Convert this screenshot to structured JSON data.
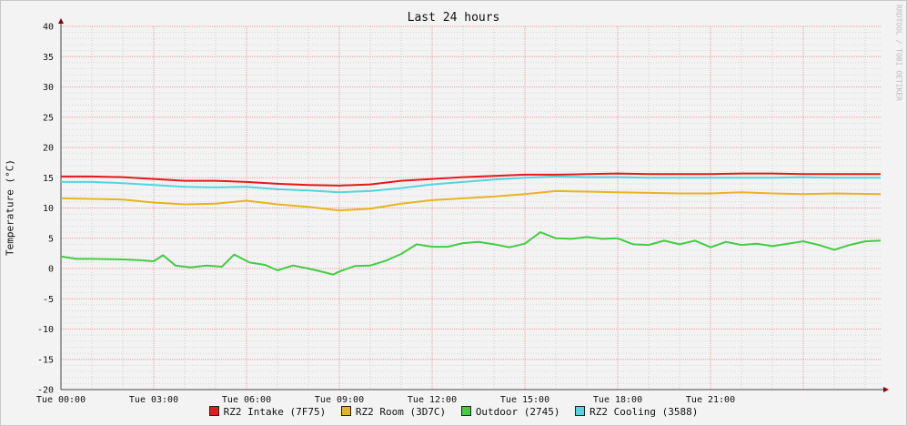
{
  "chart_data": {
    "type": "line",
    "title": "Last 24 hours",
    "ylabel": "Temperature (°C)",
    "watermark": "RRDTOOL / TOBI OETIKER",
    "ylim": [
      -20,
      40
    ],
    "yticks": [
      40,
      35,
      30,
      25,
      20,
      15,
      10,
      5,
      0,
      -5,
      -10,
      -15,
      -20
    ],
    "xlim": [
      0,
      26.5
    ],
    "xticks": [
      {
        "x": 0,
        "label": "Tue 00:00"
      },
      {
        "x": 3,
        "label": "Tue 03:00"
      },
      {
        "x": 6,
        "label": "Tue 06:00"
      },
      {
        "x": 9,
        "label": "Tue 09:00"
      },
      {
        "x": 12,
        "label": "Tue 12:00"
      },
      {
        "x": 15,
        "label": "Tue 15:00"
      },
      {
        "x": 18,
        "label": "Tue 18:00"
      },
      {
        "x": 21,
        "label": "Tue 21:00"
      }
    ],
    "grid": true,
    "legend_position": "bottom",
    "series": [
      {
        "name": "RZ2 Intake (7F75)",
        "color": "#e41a1c",
        "x": [
          0,
          1,
          2,
          3,
          4,
          5,
          6,
          7,
          8,
          9,
          10,
          11,
          12,
          13,
          14,
          15,
          16,
          17,
          18,
          19,
          20,
          21,
          22,
          23,
          24,
          25,
          26.5
        ],
        "y": [
          15.2,
          15.2,
          15.1,
          14.8,
          14.5,
          14.5,
          14.3,
          14.0,
          13.8,
          13.7,
          13.9,
          14.5,
          14.8,
          15.1,
          15.3,
          15.5,
          15.5,
          15.6,
          15.7,
          15.6,
          15.6,
          15.6,
          15.7,
          15.7,
          15.6,
          15.6,
          15.6
        ]
      },
      {
        "name": "RZ2 Room (3D7C)",
        "color": "#e6b422",
        "x": [
          0,
          1,
          2,
          3,
          4,
          5,
          6,
          7,
          8,
          9,
          10,
          11,
          12,
          13,
          14,
          15,
          16,
          17,
          18,
          19,
          20,
          21,
          22,
          23,
          24,
          25,
          26.5
        ],
        "y": [
          11.6,
          11.5,
          11.4,
          10.9,
          10.6,
          10.7,
          11.2,
          10.6,
          10.2,
          9.6,
          9.9,
          10.7,
          11.3,
          11.6,
          11.9,
          12.3,
          12.8,
          12.7,
          12.6,
          12.5,
          12.4,
          12.4,
          12.6,
          12.4,
          12.3,
          12.4,
          12.3
        ]
      },
      {
        "name": "Outdoor (2745)",
        "color": "#44cc44",
        "x": [
          0,
          0.5,
          1,
          2,
          2.5,
          3,
          3.3,
          3.7,
          4.2,
          4.7,
          5.2,
          5.6,
          6.1,
          6.6,
          7.0,
          7.5,
          8.0,
          8.5,
          8.8,
          9.0,
          9.5,
          10.0,
          10.5,
          11.0,
          11.5,
          12.0,
          12.5,
          13.0,
          13.5,
          14.0,
          14.5,
          15.0,
          15.5,
          16.0,
          16.5,
          17.0,
          17.5,
          18.0,
          18.5,
          19.0,
          19.5,
          20.0,
          20.5,
          21.0,
          21.5,
          22.0,
          22.5,
          23.0,
          23.5,
          24.0,
          24.5,
          25.0,
          25.5,
          26.0,
          26.5
        ],
        "y": [
          2.0,
          1.6,
          1.6,
          1.5,
          1.4,
          1.2,
          2.2,
          0.5,
          0.2,
          0.5,
          0.3,
          2.3,
          1.0,
          0.6,
          -0.3,
          0.5,
          0.0,
          -0.6,
          -1.0,
          -0.5,
          0.4,
          0.5,
          1.3,
          2.4,
          4.0,
          3.6,
          3.6,
          4.2,
          4.4,
          4.0,
          3.5,
          4.1,
          6.0,
          5.0,
          4.9,
          5.2,
          4.9,
          5.0,
          4.0,
          3.9,
          4.6,
          4.0,
          4.6,
          3.5,
          4.4,
          3.9,
          4.1,
          3.7,
          4.1,
          4.5,
          3.9,
          3.1,
          3.9,
          4.5,
          4.6
        ]
      },
      {
        "name": "RZ2 Cooling (3588)",
        "color": "#55d4e0",
        "x": [
          0,
          1,
          2,
          3,
          4,
          5,
          6,
          7,
          8,
          9,
          10,
          11,
          12,
          13,
          14,
          15,
          16,
          17,
          18,
          19,
          20,
          21,
          22,
          23,
          24,
          25,
          26.5
        ],
        "y": [
          14.3,
          14.3,
          14.1,
          13.8,
          13.5,
          13.4,
          13.5,
          13.1,
          12.9,
          12.6,
          12.8,
          13.3,
          13.9,
          14.3,
          14.7,
          15.0,
          15.2,
          15.1,
          15.1,
          15.0,
          15.0,
          15.0,
          15.0,
          15.0,
          15.1,
          15.0,
          15.0
        ]
      }
    ]
  }
}
